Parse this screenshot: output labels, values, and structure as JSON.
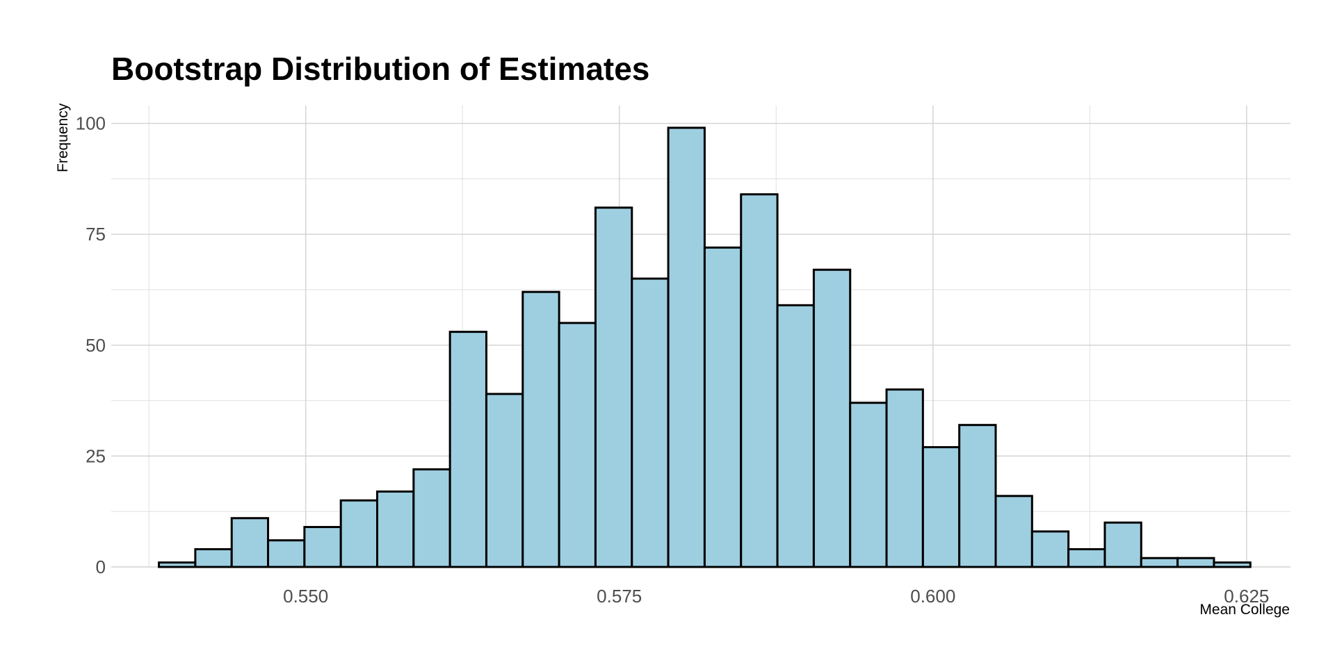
{
  "chart_data": {
    "type": "bar",
    "title": "Bootstrap Distribution of Estimates",
    "xlabel": "Mean College",
    "ylabel": "Frequency",
    "xlim": [
      0.5345,
      0.6285
    ],
    "ylim": [
      0,
      104
    ],
    "x_ticks": [
      0.55,
      0.575,
      0.6,
      0.625
    ],
    "x_tick_labels": [
      "0.550",
      "0.575",
      "0.600",
      "0.625"
    ],
    "y_ticks": [
      0,
      25,
      50,
      75,
      100
    ],
    "y_tick_labels": [
      "0",
      "25",
      "50",
      "75",
      "100"
    ],
    "grid": true,
    "legend": "none",
    "fill_color": "#9ecfe1",
    "edge_color": "#000000",
    "bin_start": 0.5383,
    "bin_width": 0.0029,
    "values": [
      1,
      4,
      11,
      6,
      9,
      15,
      17,
      22,
      53,
      39,
      62,
      55,
      81,
      65,
      99,
      72,
      84,
      59,
      67,
      37,
      40,
      27,
      32,
      16,
      8,
      4,
      10,
      2,
      2,
      1
    ]
  }
}
